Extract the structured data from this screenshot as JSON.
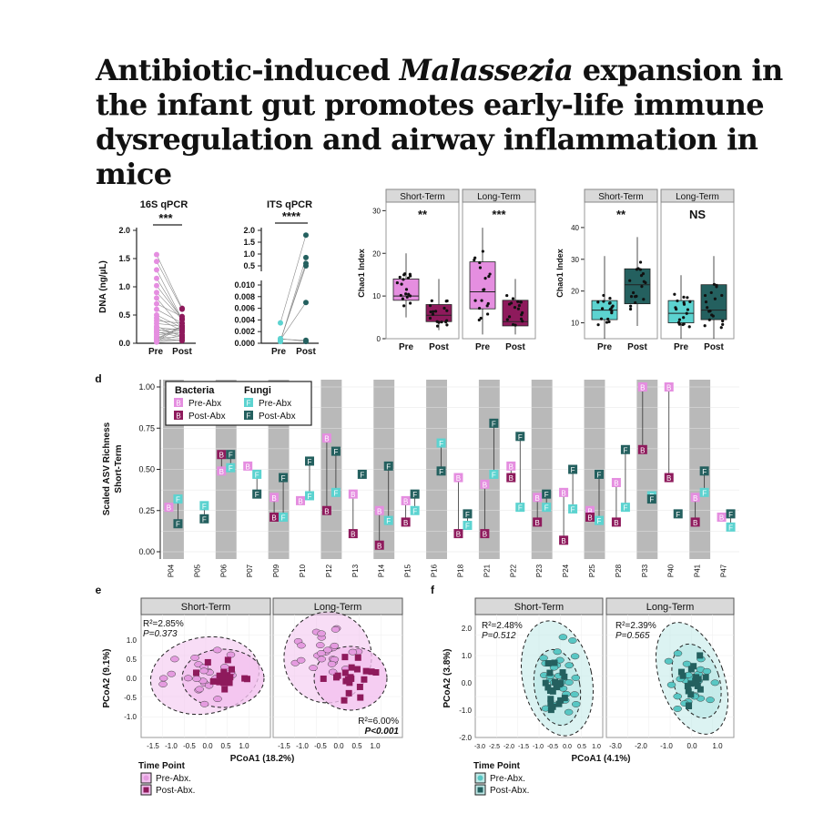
{
  "title": {
    "part1": "Antibiotic-induced ",
    "italic": "Malassezia",
    "part2": " expansion in the infant gut promotes early-life immune dysregulation and airway inflammation in mice"
  },
  "colors": {
    "pre_bacteria": "#e58ee0",
    "post_bacteria": "#8e1a5c",
    "pre_fungi": "#5cd3d0",
    "post_fungi": "#24605f",
    "strip_gray": "#b9b9b9",
    "strip_header": "#d9d9d9",
    "ellipse_pink": "#f3c1ef",
    "ellipse_teal": "#bfe9e7"
  },
  "panel_a": {
    "title": "16S qPCR",
    "ylabel": "DNA (ng/µL)",
    "yticks": [
      "0.0",
      "0.5",
      "1.0",
      "1.5",
      "2.0"
    ],
    "xticks": [
      "Pre",
      "Post"
    ],
    "sig": "***"
  },
  "panel_b": {
    "title": "ITS qPCR",
    "yticks_upper": [
      "2.0",
      "1.5",
      "1.0",
      "0.5"
    ],
    "yticks_lower": [
      "0.000",
      "0.002",
      "0.004",
      "0.006",
      "0.008",
      "0.010"
    ],
    "xticks": [
      "Pre",
      "Post"
    ],
    "sig": "****"
  },
  "panel_c": {
    "ylabel": "Chao1 Index",
    "facets": [
      "Short-Term",
      "Long-Term"
    ],
    "yticks": [
      "0",
      "10",
      "20",
      "30"
    ],
    "xticks": [
      "Pre",
      "Post"
    ],
    "sig": [
      "**",
      "***"
    ]
  },
  "panel_c2": {
    "ylabel": "Chao1 Index",
    "facets": [
      "Short-Term",
      "Long-Term"
    ],
    "yticks": [
      "10",
      "20",
      "30",
      "40"
    ],
    "xticks": [
      "Pre",
      "Post"
    ],
    "sig": [
      "**",
      "NS"
    ]
  },
  "panel_d": {
    "letter": "d",
    "ylabel1": "Scaled ASV Richness",
    "ylabel2": "Short-Term",
    "yticks": [
      "0.00",
      "0.25",
      "0.50",
      "0.75",
      "1.00"
    ],
    "legend": {
      "bacteria_title": "Bacteria",
      "fungi_title": "Fungi",
      "pre": "Pre-Abx",
      "post": "Post-Abx",
      "mark_b": "B",
      "mark_f": "F"
    }
  },
  "chart_data": {
    "type": "scatter",
    "description_key": "panel d paired ASV richness",
    "categories": [
      "P04",
      "P05",
      "P06",
      "P07",
      "P09",
      "P10",
      "P12",
      "P13",
      "P14",
      "P15",
      "P16",
      "P18",
      "P21",
      "P22",
      "P23",
      "P24",
      "P25",
      "P28",
      "P33",
      "P40",
      "P41",
      "P47"
    ],
    "series": [
      {
        "name": "Pre-Abx",
        "kind": "B",
        "values": [
          0.27,
          null,
          0.49,
          0.52,
          0.33,
          0.31,
          0.69,
          0.35,
          0.25,
          0.31,
          null,
          0.45,
          0.41,
          0.52,
          0.33,
          0.36,
          0.25,
          0.42,
          1.0,
          1.0,
          0.33,
          0.21
        ]
      },
      {
        "name": "Post-Abx",
        "kind": "B",
        "values": [
          null,
          null,
          0.59,
          null,
          0.21,
          null,
          0.25,
          0.11,
          0.04,
          0.18,
          null,
          0.11,
          0.11,
          0.45,
          0.18,
          0.07,
          0.21,
          0.18,
          0.62,
          0.45,
          0.18,
          null
        ]
      },
      {
        "name": "Pre-Abx",
        "kind": "F",
        "values": [
          0.32,
          0.28,
          0.51,
          0.47,
          0.21,
          0.34,
          0.36,
          null,
          0.19,
          0.25,
          0.66,
          0.16,
          0.47,
          0.27,
          0.27,
          0.26,
          0.19,
          0.27,
          0.34,
          null,
          0.36,
          0.15
        ]
      },
      {
        "name": "Post-Abx",
        "kind": "F",
        "values": [
          0.17,
          0.2,
          0.59,
          0.35,
          0.45,
          0.55,
          0.61,
          0.47,
          0.52,
          0.35,
          0.49,
          0.23,
          0.78,
          0.7,
          0.35,
          0.5,
          0.47,
          0.62,
          0.32,
          0.23,
          0.49,
          0.23
        ]
      }
    ],
    "ylim": [
      0,
      1
    ]
  },
  "panel_e": {
    "letter": "e",
    "facets": [
      "Short-Term",
      "Long-Term"
    ],
    "ylabel": "PCoA2 (9.1%)",
    "xlabel": "PCoA1 (18.2%)",
    "yticks": [
      "1.0",
      "0.5",
      "0.0",
      "-0.5",
      "-1.0"
    ],
    "xticks": [
      "-1.5",
      "-1.0",
      "-0.5",
      "0.0",
      "0.5",
      "1.0"
    ],
    "stat_short": {
      "r2": "R²=2.85%",
      "p": "P=0.373"
    },
    "stat_long": {
      "r2": "R²=6.00%",
      "p": "P<0.001"
    },
    "legend_title": "Time Point",
    "legend_pre": "Pre-Abx.",
    "legend_post": "Post-Abx."
  },
  "panel_f": {
    "letter": "f",
    "facets": [
      "Short-Term",
      "Long-Term"
    ],
    "ylabel": "PCoA2 (3.8%)",
    "xlabel": "PCoA1 (4.1%)",
    "yticks": [
      "2.0",
      "1.0",
      "0.0",
      "-1.0",
      "-2.0"
    ],
    "xticks_short": [
      "-3.0",
      "-2.5",
      "-2.0",
      "-1.5",
      "-1.0",
      "-0.5",
      "0.0",
      "0.5",
      "1.0"
    ],
    "xticks_long": [
      "-3.0",
      "-2.0",
      "-1.0",
      "0.0",
      "1.0"
    ],
    "stat_short": {
      "r2": "R²=2.48%",
      "p": "P=0.512"
    },
    "stat_long": {
      "r2": "R²=2.39%",
      "p": "P=0.565"
    },
    "legend_title": "Time Point",
    "legend_pre": "Pre-Abx.",
    "legend_post": "Post-Abx."
  }
}
